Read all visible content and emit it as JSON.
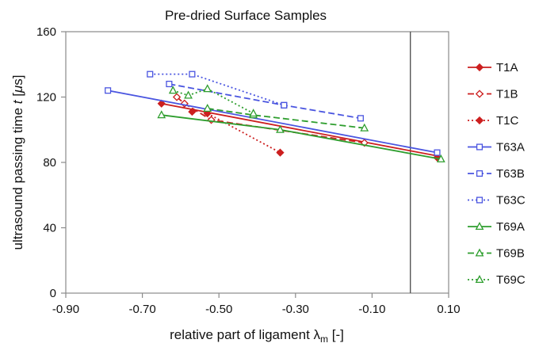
{
  "chart_data": {
    "type": "line",
    "title": "Pre-dried Surface Samples",
    "xlabel": {
      "main": "relative part of ligament ",
      "symbol": "λ",
      "subscript": "m",
      "unit": " [-]"
    },
    "ylabel": {
      "main": "ultrasound passing time ",
      "symbol": "t",
      "unit_open": " [",
      "unit_mu": "μ",
      "unit_rest": "s]"
    },
    "xlim": [
      -0.9,
      0.1
    ],
    "ylim": [
      0,
      160
    ],
    "xticks": [
      -0.9,
      -0.7,
      -0.5,
      -0.3,
      -0.1,
      0.1
    ],
    "xtick_labels": [
      "-0.90",
      "-0.70",
      "-0.50",
      "-0.30",
      "-0.10",
      "0.10"
    ],
    "yticks": [
      0,
      40,
      80,
      120,
      160
    ],
    "ytick_labels": [
      "0",
      "40",
      "80",
      "120",
      "160"
    ],
    "vertical_line_x": 0,
    "grid": false,
    "legend_position": "right",
    "series": [
      {
        "name": "T1A",
        "color": "#cc1f1f",
        "marker": "diamond",
        "dash": "solid",
        "x": [
          -0.65,
          -0.57,
          0.07
        ],
        "y": [
          116,
          111,
          83
        ],
        "fit": [
          [
            -0.65,
            116
          ],
          [
            0.07,
            84
          ]
        ]
      },
      {
        "name": "T1B",
        "color": "#cc1f1f",
        "marker": "diamond-open",
        "dash": "dashed",
        "x": [
          -0.61,
          -0.59,
          -0.52,
          -0.12
        ],
        "y": [
          120,
          116,
          106,
          92
        ]
      },
      {
        "name": "T1C",
        "color": "#cc1f1f",
        "marker": "diamond",
        "dash": "dotted",
        "x": [
          -0.53,
          -0.34
        ],
        "y": [
          110,
          86
        ]
      },
      {
        "name": "T63A",
        "color": "#4a55e0",
        "marker": "square-open",
        "dash": "solid",
        "x": [
          -0.79,
          0.07
        ],
        "y": [
          124,
          86
        ]
      },
      {
        "name": "T63B",
        "color": "#4a55e0",
        "marker": "square-open",
        "dash": "dashed",
        "x": [
          -0.63,
          -0.33,
          -0.13
        ],
        "y": [
          128,
          115,
          107
        ]
      },
      {
        "name": "T63C",
        "color": "#4a55e0",
        "marker": "square-open",
        "dash": "dotted",
        "x": [
          -0.68,
          -0.57,
          -0.33
        ],
        "y": [
          134,
          134,
          115
        ]
      },
      {
        "name": "T69A",
        "color": "#2e9e2e",
        "marker": "triangle-open",
        "dash": "solid",
        "x": [
          -0.65,
          -0.34,
          0.08
        ],
        "y": [
          109,
          100,
          82
        ]
      },
      {
        "name": "T69B",
        "color": "#2e9e2e",
        "marker": "triangle-open",
        "dash": "dashed",
        "x": [
          -0.53,
          -0.41,
          -0.12
        ],
        "y": [
          113,
          109,
          101
        ]
      },
      {
        "name": "T69C",
        "color": "#2e9e2e",
        "marker": "triangle-open",
        "dash": "dotted",
        "x": [
          -0.62,
          -0.58,
          -0.53,
          -0.41
        ],
        "y": [
          124,
          121,
          125,
          110
        ]
      }
    ]
  }
}
